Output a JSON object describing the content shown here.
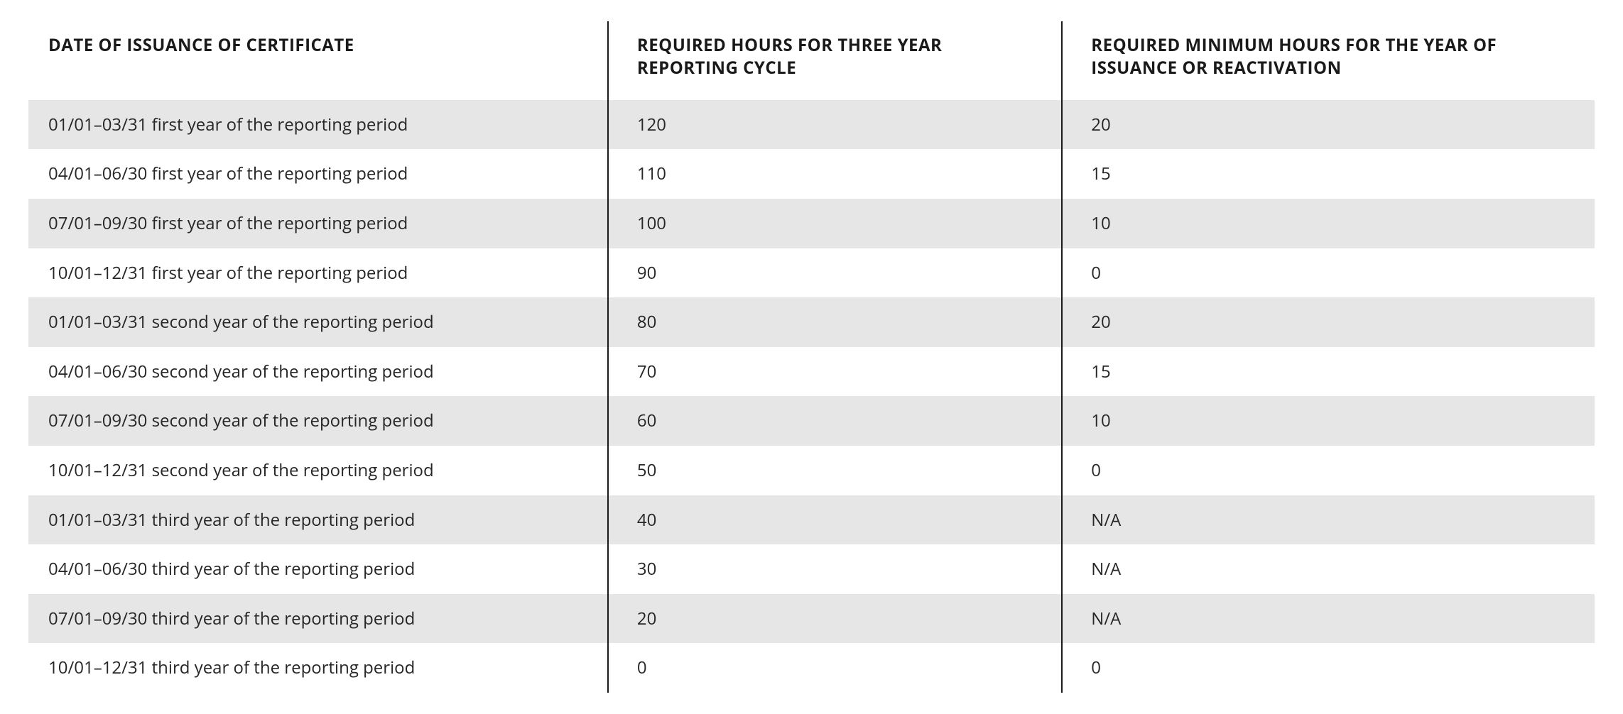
{
  "table": {
    "type": "table",
    "background_color": "#ffffff",
    "stripe_color": "#e6e6e6",
    "text_color": "#1a1a1a",
    "border_color": "#1a1a1a",
    "header_fontsize": 24,
    "body_fontsize": 24,
    "columns": [
      {
        "key": "date",
        "header": "DATE OF ISSUANCE OF CERTIFICATE",
        "width": "37%",
        "align": "left"
      },
      {
        "key": "cycle",
        "header": "REQUIRED HOURS FOR THREE YEAR REPORTING CYCLE",
        "width": "29%",
        "align": "left",
        "border_left": true
      },
      {
        "key": "min",
        "header": "REQUIRED MINIMUM HOURS FOR THE YEAR OF ISSUANCE OR REACTIVATION",
        "width": "34%",
        "align": "left",
        "border_left": true
      }
    ],
    "rows": [
      {
        "date": "01/01–03/31 first year of the reporting period",
        "cycle": "120",
        "min": "20"
      },
      {
        "date": "04/01–06/30 first year of the reporting period",
        "cycle": "110",
        "min": "15"
      },
      {
        "date": "07/01–09/30 first year of the reporting period",
        "cycle": "100",
        "min": "10"
      },
      {
        "date": "10/01–12/31 first year of the reporting period",
        "cycle": "90",
        "min": "0"
      },
      {
        "date": "01/01–03/31 second year of the reporting period",
        "cycle": "80",
        "min": "20"
      },
      {
        "date": "04/01–06/30 second year of the reporting period",
        "cycle": "70",
        "min": "15"
      },
      {
        "date": "07/01–09/30 second year of the reporting period",
        "cycle": "60",
        "min": "10"
      },
      {
        "date": "10/01–12/31 second year of the reporting period",
        "cycle": "50",
        "min": "0"
      },
      {
        "date": "01/01–03/31 third year of the reporting period",
        "cycle": "40",
        "min": "N/A"
      },
      {
        "date": "04/01–06/30 third year of the reporting period",
        "cycle": "30",
        "min": "N/A"
      },
      {
        "date": "07/01–09/30 third year of the reporting period",
        "cycle": "20",
        "min": "N/A"
      },
      {
        "date": "10/01–12/31 third year of the reporting period",
        "cycle": "0",
        "min": "0"
      }
    ]
  }
}
